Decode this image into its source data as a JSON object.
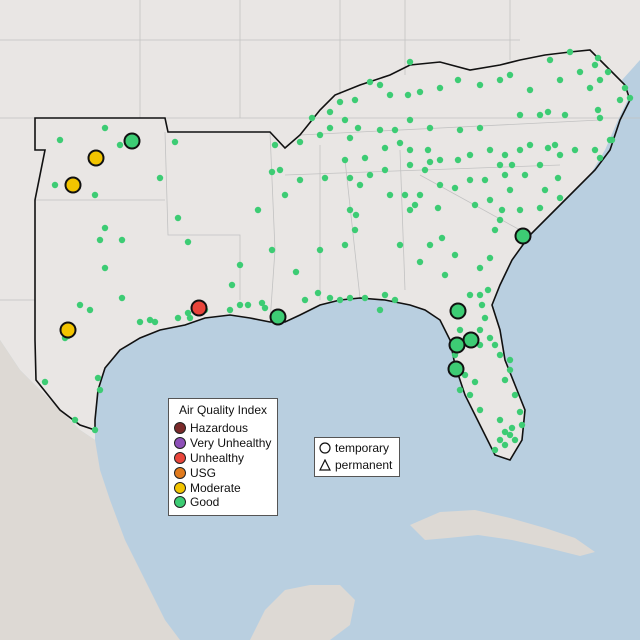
{
  "map": {
    "ocean_color": "#b9cfe0",
    "land_color": "#e9e6e4",
    "mexico_color": "#ddd9d4",
    "border_color": "#c2c2c2",
    "highlight_border_color": "#111111"
  },
  "legend": {
    "title": "Air Quality Index",
    "categories": [
      {
        "label": "Hazardous",
        "color": "#7a2a2a"
      },
      {
        "label": "Very Unhealthy",
        "color": "#8d4fb8"
      },
      {
        "label": "Unhealthy",
        "color": "#e8453b"
      },
      {
        "label": "USG",
        "color": "#e07a1d"
      },
      {
        "label": "Moderate",
        "color": "#f2c400"
      },
      {
        "label": "Good",
        "color": "#3dcc74"
      }
    ]
  },
  "shape_legend": {
    "items": [
      {
        "label": "temporary",
        "shape": "circle-icon"
      },
      {
        "label": "permanent",
        "shape": "triangle-icon"
      }
    ]
  }
}
